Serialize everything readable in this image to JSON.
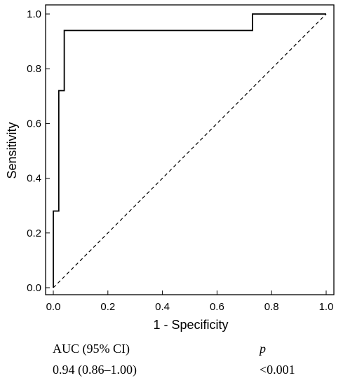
{
  "chart_data": {
    "type": "line",
    "title": "",
    "xlabel": "1 - Specificity",
    "ylabel": "Sensitivity",
    "xlim": [
      0,
      1
    ],
    "ylim": [
      0,
      1
    ],
    "x_ticks": [
      "0.0",
      "0.2",
      "0.4",
      "0.6",
      "0.8",
      "1.0"
    ],
    "y_ticks": [
      "0.0",
      "0.2",
      "0.4",
      "0.6",
      "0.8",
      "1.0"
    ],
    "grid": false,
    "series": [
      {
        "style": "solid",
        "x": [
          0.0,
          0.0,
          0.02,
          0.02,
          0.04,
          0.04,
          0.73,
          0.73,
          1.0
        ],
        "y": [
          0.0,
          0.28,
          0.28,
          0.72,
          0.72,
          0.94,
          0.94,
          1.0,
          1.0
        ]
      },
      {
        "style": "dashed",
        "x": [
          0.0,
          1.0
        ],
        "y": [
          0.0,
          1.0
        ]
      }
    ]
  },
  "stats_table": {
    "headers": [
      "AUC (95% CI)",
      "p"
    ],
    "row": [
      "0.94 (0.86–1.00)",
      "<0.001"
    ]
  }
}
